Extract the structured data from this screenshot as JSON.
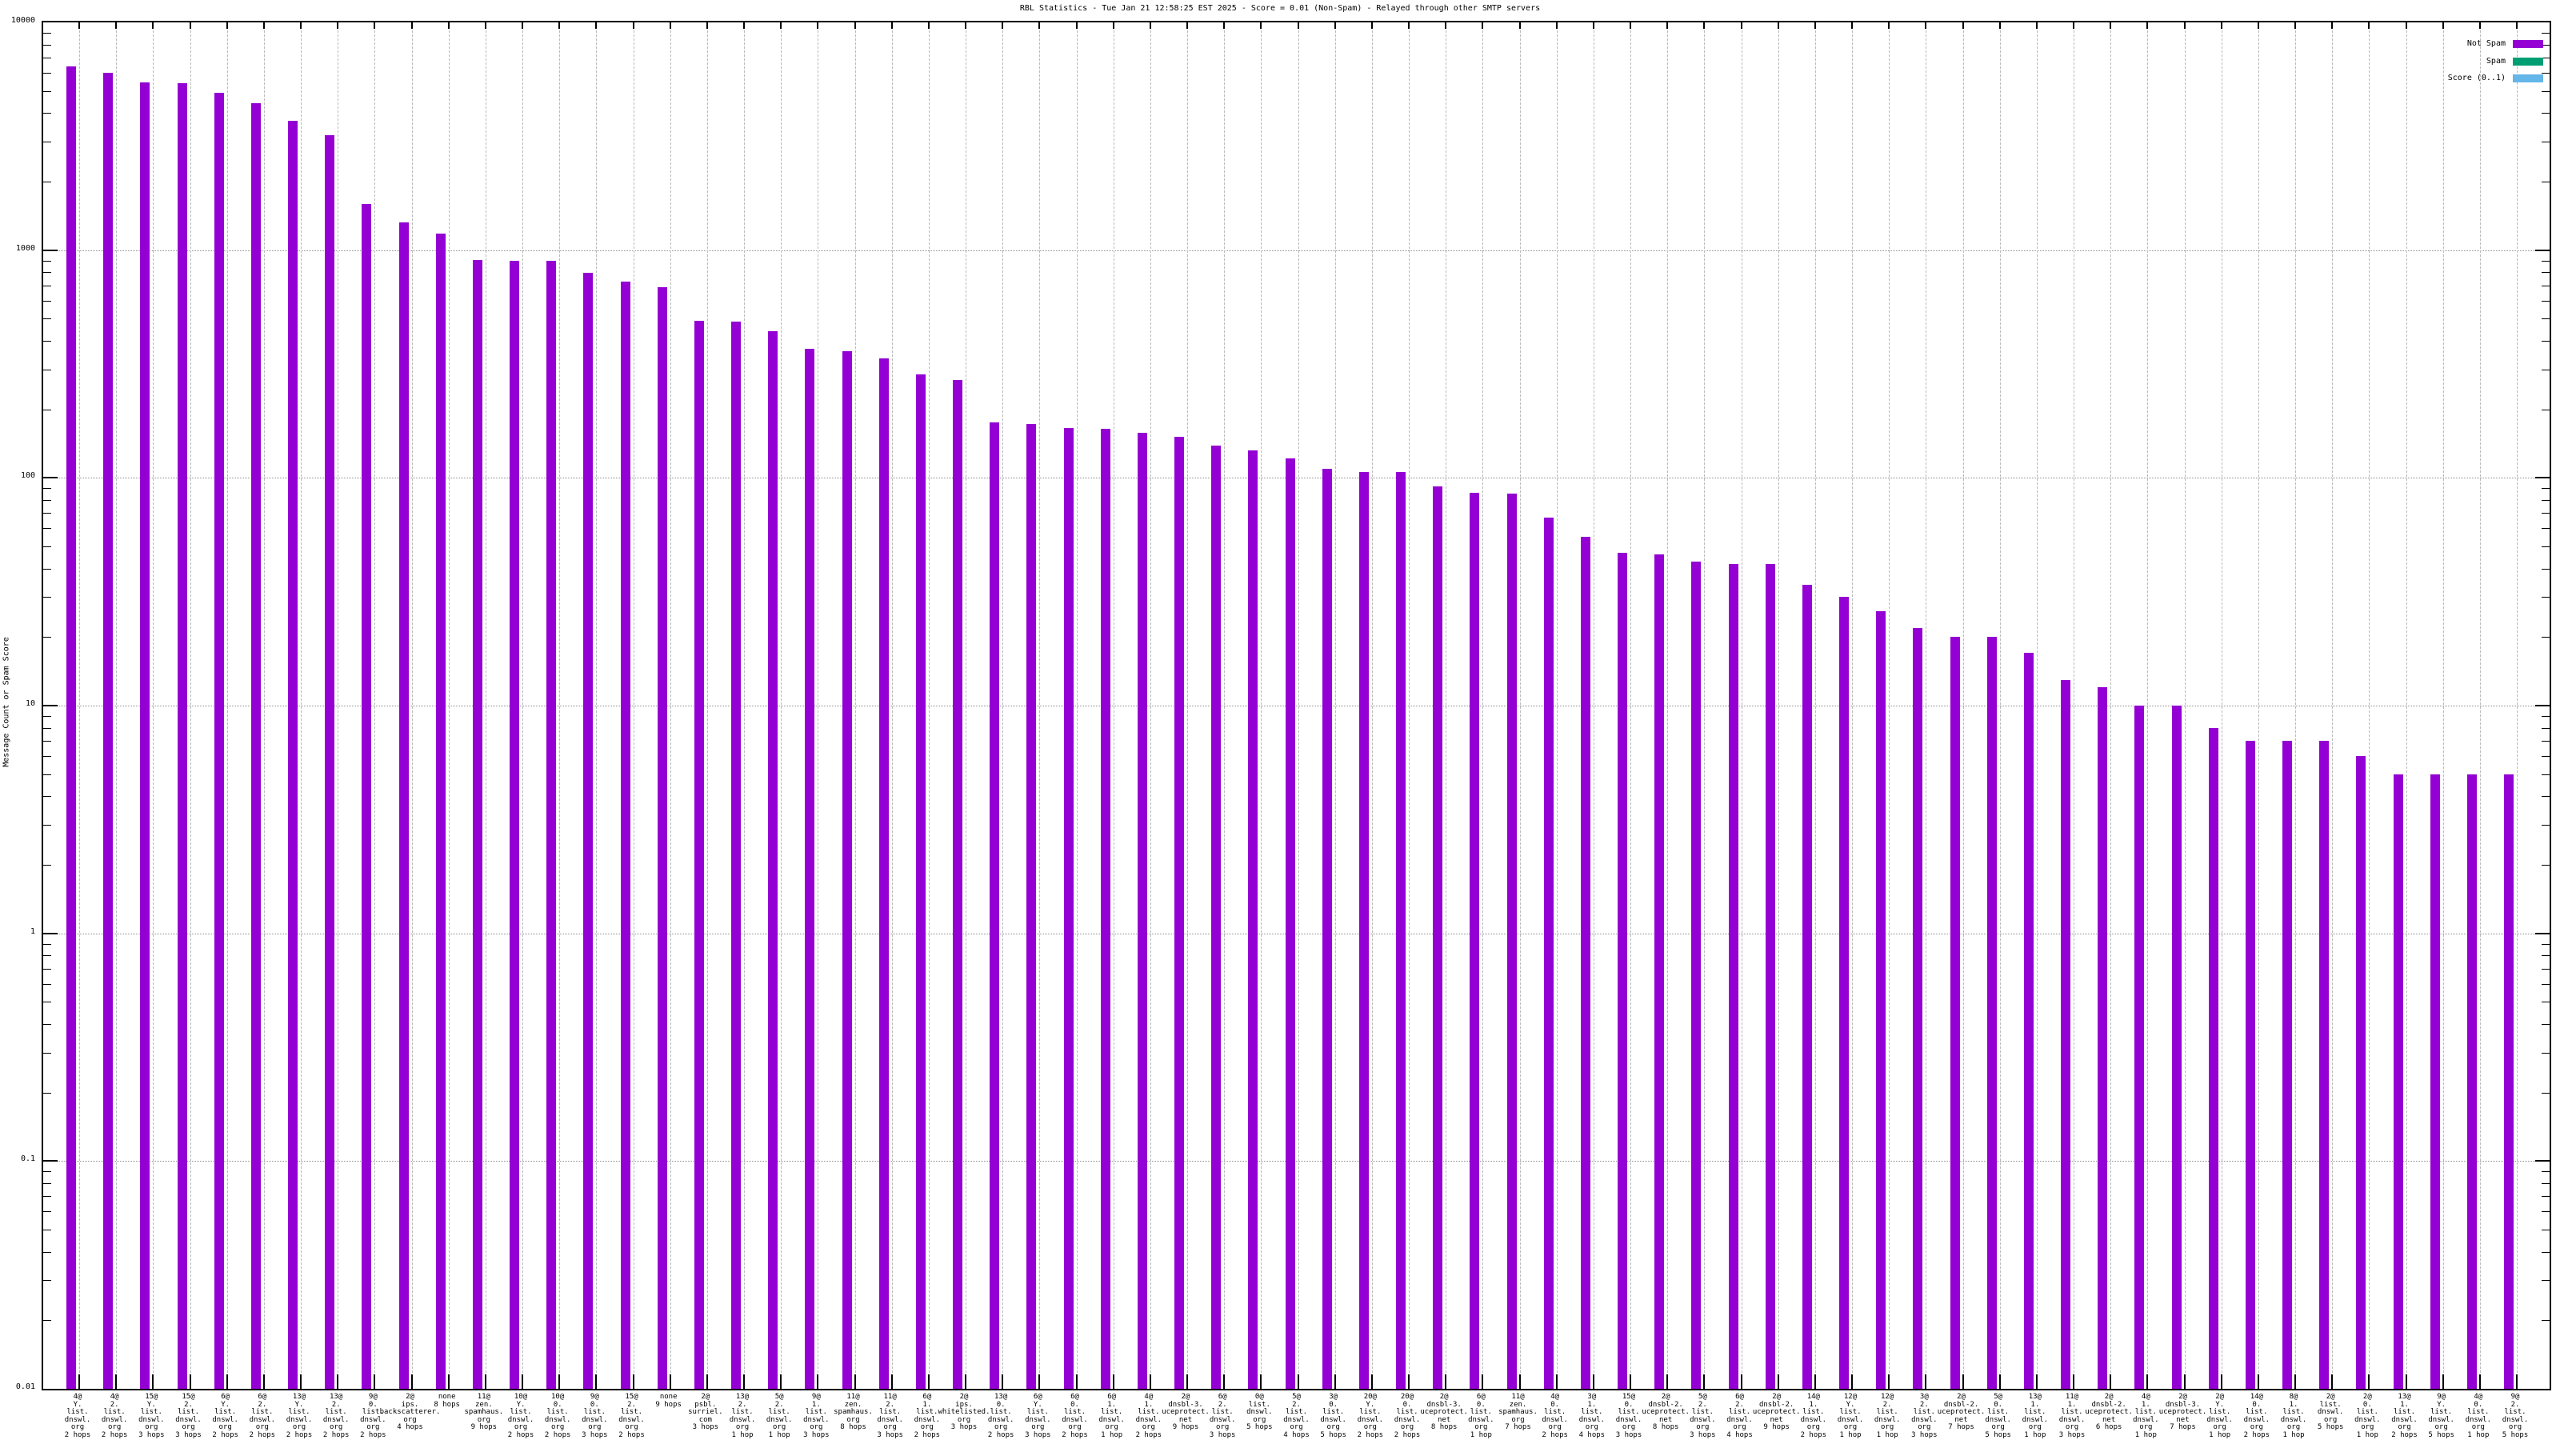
{
  "chart_data": {
    "type": "bar",
    "title": "RBL Statistics - Tue Jan 21 12:58:25 EST 2025 - Score = 0.01 (Non-Spam) - Relayed through other SMTP servers",
    "ylabel": "Message Count or Spam Score",
    "xlabel": "",
    "yscale": "log",
    "ylim": [
      0.01,
      10000
    ],
    "grid": true,
    "legend_position": "top-right",
    "colors": {
      "not_spam": "#9400d3",
      "spam": "#009e73",
      "score": "#64b5e8",
      "grid_dashed": "#b8b8b8",
      "grid_dotted": "#8f8f8f"
    },
    "legend": [
      {
        "label": "Not Spam",
        "color_key": "not_spam"
      },
      {
        "label": "Spam",
        "color_key": "spam"
      },
      {
        "label": "Score (0..1)",
        "color_key": "score"
      }
    ],
    "yticks": [
      {
        "label": "10000",
        "value": 10000
      },
      {
        "label": "1000",
        "value": 1000
      },
      {
        "label": "100",
        "value": 100
      },
      {
        "label": "10",
        "value": 10
      },
      {
        "label": "1",
        "value": 1
      },
      {
        "label": "0.1",
        "value": 0.1
      },
      {
        "label": "0.01",
        "value": 0.01
      }
    ],
    "bars": [
      {
        "label_lines": [
          "4@",
          "Y.",
          "list.",
          "dnswl.",
          "org",
          "2 hops"
        ],
        "value": 6400
      },
      {
        "label_lines": [
          "4@",
          "2.",
          "list.",
          "dnswl.",
          "org",
          "2 hops"
        ],
        "value": 6000
      },
      {
        "label_lines": [
          "15@",
          "Y.",
          "list.",
          "dnswl.",
          "org",
          "3 hops"
        ],
        "value": 5450
      },
      {
        "label_lines": [
          "15@",
          "2.",
          "list.",
          "dnswl.",
          "org",
          "3 hops"
        ],
        "value": 5400
      },
      {
        "label_lines": [
          "6@",
          "Y.",
          "list.",
          "dnswl.",
          "org",
          "2 hops"
        ],
        "value": 4900
      },
      {
        "label_lines": [
          "6@",
          "2.",
          "list.",
          "dnswl.",
          "org",
          "2 hops"
        ],
        "value": 4400
      },
      {
        "label_lines": [
          "13@",
          "Y.",
          "list.",
          "dnswl.",
          "org",
          "2 hops"
        ],
        "value": 3700
      },
      {
        "label_lines": [
          "13@",
          "2.",
          "list.",
          "dnswl.",
          "org",
          "2 hops"
        ],
        "value": 3200
      },
      {
        "label_lines": [
          "9@",
          "0.",
          "list.",
          "dnswl.",
          "org",
          "2 hops"
        ],
        "value": 1600
      },
      {
        "label_lines": [
          "2@",
          "ips.",
          "backscatterer.",
          "org",
          "4 hops"
        ],
        "value": 1320
      },
      {
        "label_lines": [
          "none",
          "8 hops"
        ],
        "value": 1180
      },
      {
        "label_lines": [
          "11@",
          "zen.",
          "spamhaus.",
          "org",
          "9 hops"
        ],
        "value": 905
      },
      {
        "label_lines": [
          "10@",
          "Y.",
          "list.",
          "dnswl.",
          "org",
          "2 hops"
        ],
        "value": 900
      },
      {
        "label_lines": [
          "10@",
          "0.",
          "list.",
          "dnswl.",
          "org",
          "2 hops"
        ],
        "value": 900
      },
      {
        "label_lines": [
          "9@",
          "0.",
          "list.",
          "dnswl.",
          "org",
          "3 hops"
        ],
        "value": 795
      },
      {
        "label_lines": [
          "15@",
          "2.",
          "list.",
          "dnswl.",
          "org",
          "2 hops"
        ],
        "value": 730
      },
      {
        "label_lines": [
          "none",
          "9 hops"
        ],
        "value": 690
      },
      {
        "label_lines": [
          "2@",
          "psbl.",
          "surriel.",
          "com",
          "3 hops"
        ],
        "value": 490
      },
      {
        "label_lines": [
          "13@",
          "2.",
          "list.",
          "dnswl.",
          "org",
          "1 hop"
        ],
        "value": 485
      },
      {
        "label_lines": [
          "5@",
          "2.",
          "list.",
          "dnswl.",
          "org",
          "1 hop"
        ],
        "value": 440
      },
      {
        "label_lines": [
          "9@",
          "1.",
          "list.",
          "dnswl.",
          "org",
          "3 hops"
        ],
        "value": 370
      },
      {
        "label_lines": [
          "11@",
          "zen.",
          "spamhaus.",
          "org",
          "8 hops"
        ],
        "value": 360
      },
      {
        "label_lines": [
          "11@",
          "2.",
          "list.",
          "dnswl.",
          "org",
          "3 hops"
        ],
        "value": 335
      },
      {
        "label_lines": [
          "6@",
          "1.",
          "list.",
          "dnswl.",
          "org",
          "2 hops"
        ],
        "value": 285
      },
      {
        "label_lines": [
          "2@",
          "ips.",
          "whitelisted.",
          "org",
          "3 hops"
        ],
        "value": 270
      },
      {
        "label_lines": [
          "13@",
          "0.",
          "list.",
          "dnswl.",
          "org",
          "2 hops"
        ],
        "value": 175
      },
      {
        "label_lines": [
          "6@",
          "Y.",
          "list.",
          "dnswl.",
          "org",
          "3 hops"
        ],
        "value": 172
      },
      {
        "label_lines": [
          "6@",
          "0.",
          "list.",
          "dnswl.",
          "org",
          "2 hops"
        ],
        "value": 165
      },
      {
        "label_lines": [
          "6@",
          "1.",
          "list.",
          "dnswl.",
          "org",
          "1 hop"
        ],
        "value": 164
      },
      {
        "label_lines": [
          "4@",
          "1.",
          "list.",
          "dnswl.",
          "org",
          "2 hops"
        ],
        "value": 158
      },
      {
        "label_lines": [
          "2@",
          "dnsbl-3.",
          "uceprotect.",
          "net",
          "9 hops"
        ],
        "value": 152
      },
      {
        "label_lines": [
          "6@",
          "2.",
          "list.",
          "dnswl.",
          "org",
          "3 hops"
        ],
        "value": 139
      },
      {
        "label_lines": [
          "0@",
          "list.",
          "dnswl.",
          "org",
          "5 hops"
        ],
        "value": 132
      },
      {
        "label_lines": [
          "5@",
          "2.",
          "list.",
          "dnswl.",
          "org",
          "4 hops"
        ],
        "value": 122
      },
      {
        "label_lines": [
          "3@",
          "0.",
          "list.",
          "dnswl.",
          "org",
          "5 hops"
        ],
        "value": 110
      },
      {
        "label_lines": [
          "20@",
          "Y.",
          "list.",
          "dnswl.",
          "org",
          "2 hops"
        ],
        "value": 106
      },
      {
        "label_lines": [
          "20@",
          "0.",
          "list.",
          "dnswl.",
          "org",
          "2 hops"
        ],
        "value": 106
      },
      {
        "label_lines": [
          "2@",
          "dnsbl-3.",
          "uceprotect.",
          "net",
          "8 hops"
        ],
        "value": 92
      },
      {
        "label_lines": [
          "6@",
          "0.",
          "list.",
          "dnswl.",
          "org",
          "1 hop"
        ],
        "value": 86
      },
      {
        "label_lines": [
          "11@",
          "zen.",
          "spamhaus.",
          "org",
          "7 hops"
        ],
        "value": 85
      },
      {
        "label_lines": [
          "4@",
          "0.",
          "list.",
          "dnswl.",
          "org",
          "2 hops"
        ],
        "value": 67
      },
      {
        "label_lines": [
          "3@",
          "1.",
          "list.",
          "dnswl.",
          "org",
          "4 hops"
        ],
        "value": 55
      },
      {
        "label_lines": [
          "15@",
          "0.",
          "list.",
          "dnswl.",
          "org",
          "3 hops"
        ],
        "value": 47
      },
      {
        "label_lines": [
          "2@",
          "dnsbl-2.",
          "uceprotect.",
          "net",
          "8 hops"
        ],
        "value": 46
      },
      {
        "label_lines": [
          "5@",
          "2.",
          "list.",
          "dnswl.",
          "org",
          "3 hops"
        ],
        "value": 43
      },
      {
        "label_lines": [
          "6@",
          "2.",
          "list.",
          "dnswl.",
          "org",
          "4 hops"
        ],
        "value": 42
      },
      {
        "label_lines": [
          "2@",
          "dnsbl-2.",
          "uceprotect.",
          "net",
          "9 hops"
        ],
        "value": 42
      },
      {
        "label_lines": [
          "14@",
          "1.",
          "list.",
          "dnswl.",
          "org",
          "2 hops"
        ],
        "value": 34
      },
      {
        "label_lines": [
          "12@",
          "Y.",
          "list.",
          "dnswl.",
          "org",
          "1 hop"
        ],
        "value": 30
      },
      {
        "label_lines": [
          "12@",
          "2.",
          "list.",
          "dnswl.",
          "org",
          "1 hop"
        ],
        "value": 26
      },
      {
        "label_lines": [
          "3@",
          "2.",
          "list.",
          "dnswl.",
          "org",
          "3 hops"
        ],
        "value": 22
      },
      {
        "label_lines": [
          "2@",
          "dnsbl-2.",
          "uceprotect.",
          "net",
          "7 hops"
        ],
        "value": 20
      },
      {
        "label_lines": [
          "5@",
          "0.",
          "list.",
          "dnswl.",
          "org",
          "5 hops"
        ],
        "value": 20
      },
      {
        "label_lines": [
          "13@",
          "1.",
          "list.",
          "dnswl.",
          "org",
          "1 hop"
        ],
        "value": 17
      },
      {
        "label_lines": [
          "11@",
          "1.",
          "list.",
          "dnswl.",
          "org",
          "3 hops"
        ],
        "value": 13
      },
      {
        "label_lines": [
          "2@",
          "dnsbl-2.",
          "uceprotect.",
          "net",
          "6 hops"
        ],
        "value": 12
      },
      {
        "label_lines": [
          "4@",
          "1.",
          "list.",
          "dnswl.",
          "org",
          "1 hop"
        ],
        "value": 10
      },
      {
        "label_lines": [
          "2@",
          "dnsbl-3.",
          "uceprotect.",
          "net",
          "7 hops"
        ],
        "value": 10
      },
      {
        "label_lines": [
          "2@",
          "Y.",
          "list.",
          "dnswl.",
          "org",
          "1 hop"
        ],
        "value": 8
      },
      {
        "label_lines": [
          "14@",
          "0.",
          "list.",
          "dnswl.",
          "org",
          "2 hops"
        ],
        "value": 7
      },
      {
        "label_lines": [
          "8@",
          "1.",
          "list.",
          "dnswl.",
          "org",
          "1 hop"
        ],
        "value": 7
      },
      {
        "label_lines": [
          "2@",
          "list.",
          "dnswl.",
          "org",
          "5 hops"
        ],
        "value": 7
      },
      {
        "label_lines": [
          "2@",
          "0.",
          "list.",
          "dnswl.",
          "org",
          "1 hop"
        ],
        "value": 6
      },
      {
        "label_lines": [
          "13@",
          "1.",
          "list.",
          "dnswl.",
          "org",
          "2 hops"
        ],
        "value": 5
      },
      {
        "label_lines": [
          "9@",
          "Y.",
          "list.",
          "dnswl.",
          "org",
          "5 hops"
        ],
        "value": 5
      },
      {
        "label_lines": [
          "4@",
          "0.",
          "list.",
          "dnswl.",
          "org",
          "1 hop"
        ],
        "value": 5
      },
      {
        "label_lines": [
          "9@",
          "2.",
          "list.",
          "dnswl.",
          "org",
          "5 hops"
        ],
        "value": 5
      }
    ]
  }
}
